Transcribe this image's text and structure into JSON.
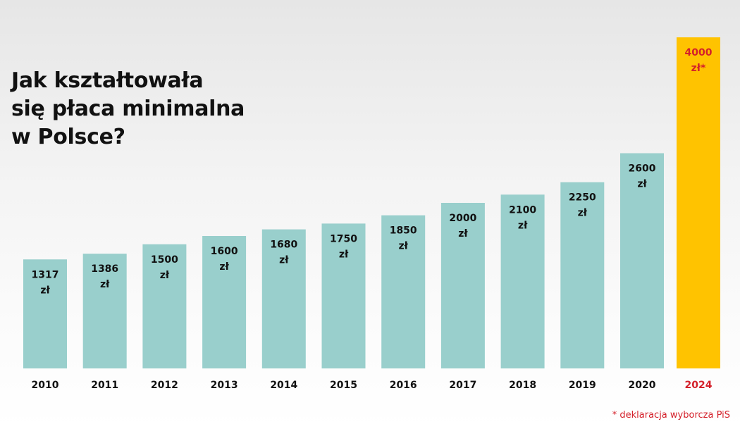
{
  "title_lines": [
    "Jak kształtowała",
    "się płaca minimalna",
    "w Polsce?"
  ],
  "footnote": "* deklaracja wyborcza PiS",
  "colors": {
    "bar": "#99cfcc",
    "highlight_bar": "#ffc300",
    "text": "#111111",
    "highlight_text": "#d4202a"
  },
  "chart_data": {
    "type": "bar",
    "title": "Jak kształtowała się płaca minimalna w Polsce?",
    "categories": [
      "2010",
      "2011",
      "2012",
      "2013",
      "2014",
      "2015",
      "2016",
      "2017",
      "2018",
      "2019",
      "2020",
      "2024"
    ],
    "values": [
      1317,
      1386,
      1500,
      1600,
      1680,
      1750,
      1850,
      2000,
      2100,
      2250,
      2600,
      4000
    ],
    "data_labels": [
      [
        "1317",
        "zł"
      ],
      [
        "1386",
        "zł"
      ],
      [
        "1500",
        "zł"
      ],
      [
        "1600",
        "zł"
      ],
      [
        "1680",
        "zł"
      ],
      [
        "1750",
        "zł"
      ],
      [
        "1850",
        "zł"
      ],
      [
        "2000",
        "zł"
      ],
      [
        "2100",
        "zł"
      ],
      [
        "2250",
        "zł"
      ],
      [
        "2600",
        "zł"
      ],
      [
        "4000",
        "zł*"
      ]
    ],
    "highlight_index": 11,
    "xlabel": "",
    "ylabel": "",
    "grid": false,
    "legend": "none"
  }
}
